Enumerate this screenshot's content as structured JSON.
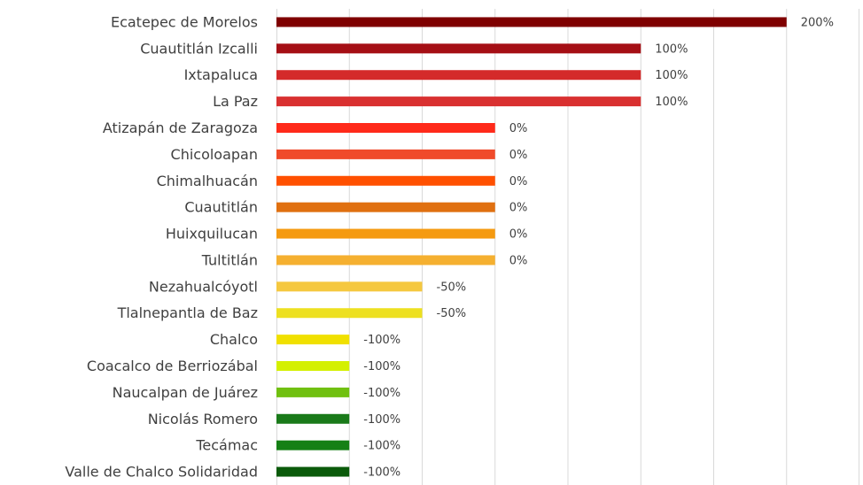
{
  "chart_data": {
    "type": "bar",
    "orientation": "horizontal",
    "categories": [
      "Ecatepec de Morelos",
      "Cuautitlán Izcalli",
      "Ixtapaluca",
      "La Paz",
      "Atizapán de Zaragoza",
      "Chicoloapan",
      "Chimalhuacán",
      "Cuautitlán",
      "Huixquilucan",
      "Tultitlán",
      "Nezahualcóyotl",
      "Tlalnepantla de Baz",
      "Chalco",
      "Coacalco de Berriozábal",
      "Naucalpan de Juárez",
      "Nicolás Romero",
      "Tecámac",
      "Valle de Chalco Solidaridad"
    ],
    "values": [
      200,
      100,
      100,
      100,
      0,
      0,
      0,
      0,
      0,
      0,
      -50,
      -50,
      -100,
      -100,
      -100,
      -100,
      -100,
      -100
    ],
    "value_labels": [
      "200%",
      "100%",
      "100%",
      "100%",
      "0%",
      "0%",
      "0%",
      "0%",
      "0%",
      "0%",
      "-50%",
      "-50%",
      "-100%",
      "-100%",
      "-100%",
      "-100%",
      "-100%",
      "-100%"
    ],
    "colors": [
      "#7f0000",
      "#a50f15",
      "#d42a2a",
      "#d93030",
      "#ff2a1a",
      "#f04a2a",
      "#ff5000",
      "#e07010",
      "#f59a10",
      "#f5b030",
      "#f5c840",
      "#ede020",
      "#f0e000",
      "#d4f000",
      "#70c010",
      "#1a7a1a",
      "#158015",
      "#0a5a0a"
    ],
    "xlim": [
      -150,
      250
    ],
    "xticks": [
      -150,
      -100,
      -50,
      0,
      50,
      100,
      150,
      200,
      250
    ],
    "grid": true
  }
}
